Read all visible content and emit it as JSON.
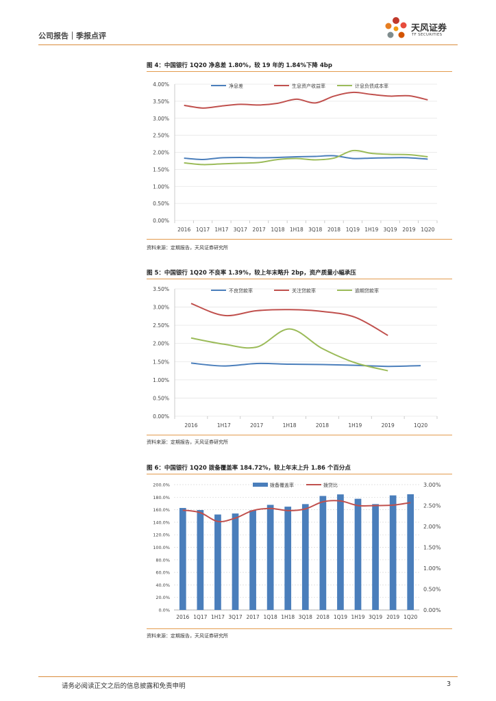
{
  "header": {
    "title": "公司报告｜季报点评",
    "logo_text": "天风证券",
    "logo_sub": "TF SECURITIES"
  },
  "colors": {
    "accent": "#d98b3a",
    "blue": "#4a7ebb",
    "red": "#c0504d",
    "green": "#9bbb59",
    "bar": "#4a7ebb"
  },
  "figures": [
    {
      "title": "图 4：中国银行 1Q20 净息差 1.80%，较 19 年的 1.84%下降 4bp",
      "source": "资料来源：定期报告，天风证券研究所"
    },
    {
      "title": "图 5：中国银行 1Q20 不良率 1.39%，较上年末略升 2bp，资产质量小幅承压",
      "source": "资料来源：定期报告，天风证券研究所"
    },
    {
      "title": "图 6：中国银行 1Q20 拨备覆盖率 184.72%，较上年末上升 1.86 个百分点",
      "source": "资料来源：定期报告，天风证券研究所"
    }
  ],
  "chart_data": [
    {
      "type": "line",
      "categories": [
        "2016",
        "1Q17",
        "1H17",
        "3Q17",
        "2017",
        "1Q18",
        "1H18",
        "3Q18",
        "2018",
        "1Q19",
        "1H19",
        "3Q19",
        "2019",
        "1Q20"
      ],
      "series": [
        {
          "name": "净息差",
          "values": [
            1.83,
            1.79,
            1.84,
            1.85,
            1.84,
            1.85,
            1.87,
            1.88,
            1.9,
            1.82,
            1.83,
            1.84,
            1.84,
            1.8
          ]
        },
        {
          "name": "生息资产收益率",
          "values": [
            3.38,
            3.3,
            3.36,
            3.41,
            3.39,
            3.44,
            3.56,
            3.45,
            3.65,
            3.76,
            3.7,
            3.65,
            3.66,
            3.54
          ]
        },
        {
          "name": "计息负债成本率",
          "values": [
            1.69,
            1.64,
            1.66,
            1.68,
            1.7,
            1.79,
            1.82,
            1.78,
            1.83,
            2.05,
            1.97,
            1.94,
            1.93,
            1.87
          ]
        }
      ],
      "yticks": [
        "4.00%",
        "3.50%",
        "3.00%",
        "2.50%",
        "2.00%",
        "1.50%",
        "1.00%",
        "0.50%",
        "0.00%"
      ],
      "ylim": [
        0,
        4
      ]
    },
    {
      "type": "line",
      "categories": [
        "2016",
        "1H17",
        "2017",
        "1H18",
        "2018",
        "1H19",
        "2019",
        "1Q20"
      ],
      "series": [
        {
          "name": "不良贷款率",
          "values": [
            1.46,
            1.38,
            1.45,
            1.43,
            1.42,
            1.4,
            1.37,
            1.39
          ]
        },
        {
          "name": "关注贷款率",
          "values": [
            3.1,
            2.77,
            2.9,
            2.93,
            2.88,
            2.72,
            2.22,
            null
          ]
        },
        {
          "name": "逾期贷款率",
          "values": [
            2.15,
            1.98,
            1.9,
            2.4,
            1.86,
            1.47,
            1.25,
            null
          ]
        }
      ],
      "yticks": [
        "3.50%",
        "3.00%",
        "2.50%",
        "2.00%",
        "1.50%",
        "1.00%",
        "0.50%",
        "0.00%"
      ],
      "ylim": [
        0,
        3.5
      ]
    },
    {
      "type": "bar",
      "categories": [
        "2016",
        "1Q17",
        "1H17",
        "3Q17",
        "2017",
        "1Q18",
        "1H18",
        "3Q18",
        "2018",
        "1Q19",
        "1H19",
        "3Q19",
        "2019",
        "1Q20"
      ],
      "series": [
        {
          "name": "拨备覆盖率",
          "axis": "left",
          "values": [
            162.8,
            159.5,
            152.4,
            154.0,
            159.2,
            167.8,
            164.9,
            169.0,
            182.0,
            184.5,
            177.5,
            169.0,
            182.9,
            184.7
          ]
        },
        {
          "name": "拨贷比",
          "axis": "right",
          "type": "line",
          "values": [
            2.39,
            2.33,
            2.12,
            2.2,
            2.38,
            2.43,
            2.38,
            2.42,
            2.59,
            2.61,
            2.5,
            2.5,
            2.51,
            2.57
          ]
        }
      ],
      "yticks_left": [
        "200.0%",
        "180.0%",
        "160.0%",
        "140.0%",
        "120.0%",
        "100.0%",
        "80.0%",
        "60.0%",
        "40.0%",
        "20.0%",
        "0.0%"
      ],
      "yticks_right": [
        "3.00%",
        "2.50%",
        "2.00%",
        "1.50%",
        "1.00%",
        "0.50%",
        "0.00%"
      ],
      "ylim_left": [
        0,
        200
      ],
      "ylim_right": [
        0,
        3
      ]
    }
  ],
  "footer": {
    "disclaimer": "请务必阅读正文之后的信息披露和免责申明",
    "page": "3"
  }
}
